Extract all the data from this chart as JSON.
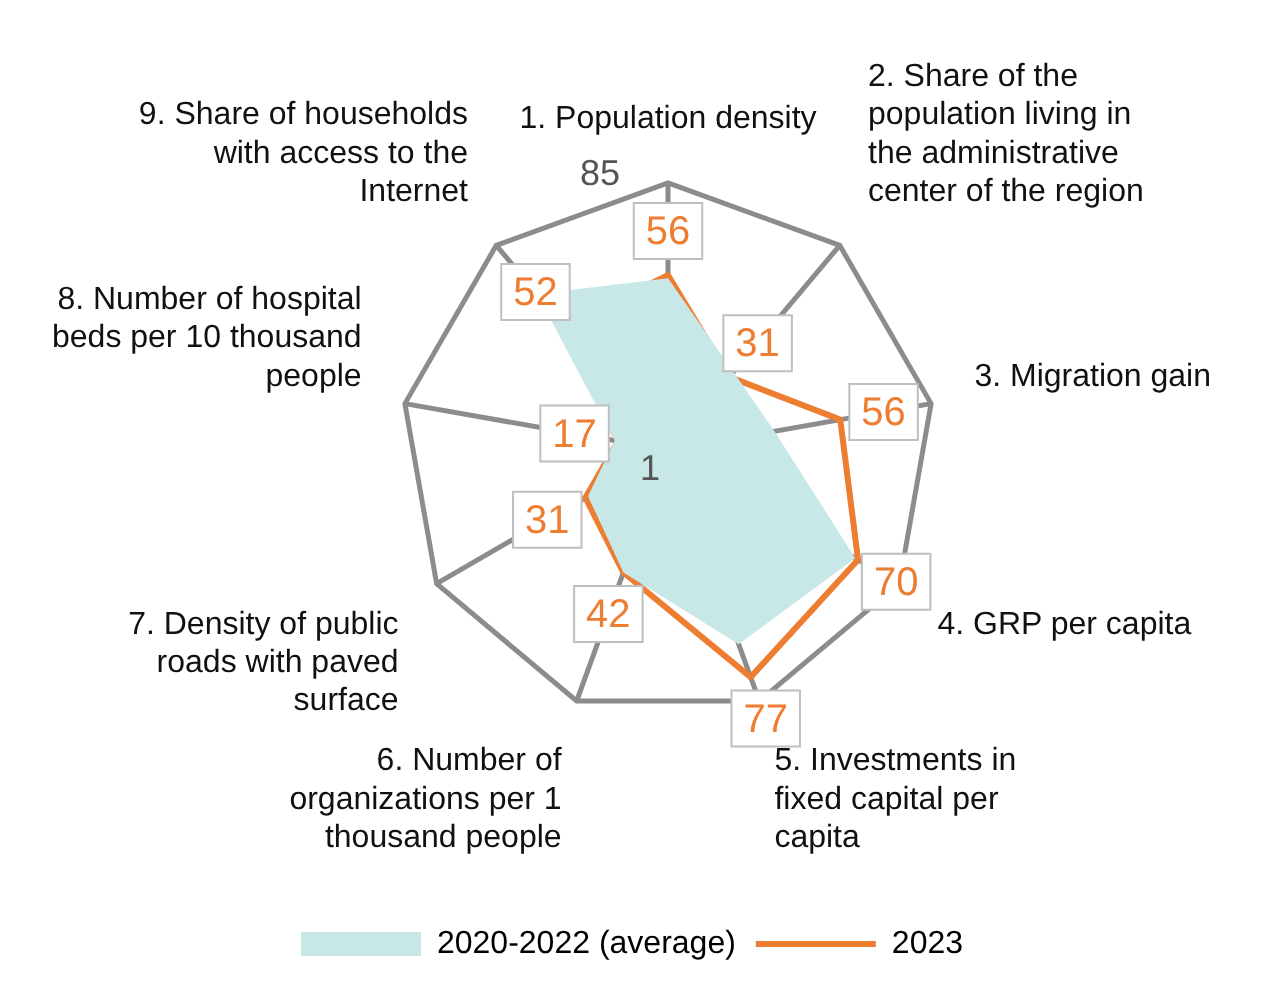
{
  "chart_data": {
    "type": "radar",
    "categories": [
      "1. Population density",
      "2. Share of the population living in the administrative center of the region",
      "3. Migration gain",
      "4. GRP per capita",
      "5. Investments in fixed capital per capita",
      "6. Number of organizations per 1 thousand people",
      "7. Density of public roads with paved surface",
      "8. Number of hospital beds per 10 thousand people",
      "9. Share of households with access to the Internet"
    ],
    "series": [
      {
        "name": "2020-2022 (average)",
        "color": "#c8e8e8",
        "values": [
          55,
          33,
          35,
          69,
          66,
          42,
          30,
          18,
          65
        ]
      },
      {
        "name": "2023",
        "color": "#ed7d31",
        "values": [
          56,
          31,
          56,
          70,
          77,
          42,
          31,
          17,
          52
        ],
        "value_labels": [
          "56",
          "31",
          "56",
          "70",
          "77",
          "42",
          "31",
          "17",
          "52"
        ]
      }
    ],
    "ylim": [
      1,
      85
    ],
    "yticks": [
      1,
      85
    ],
    "legend": "bottom",
    "marker": "none",
    "line_style": "solid"
  }
}
